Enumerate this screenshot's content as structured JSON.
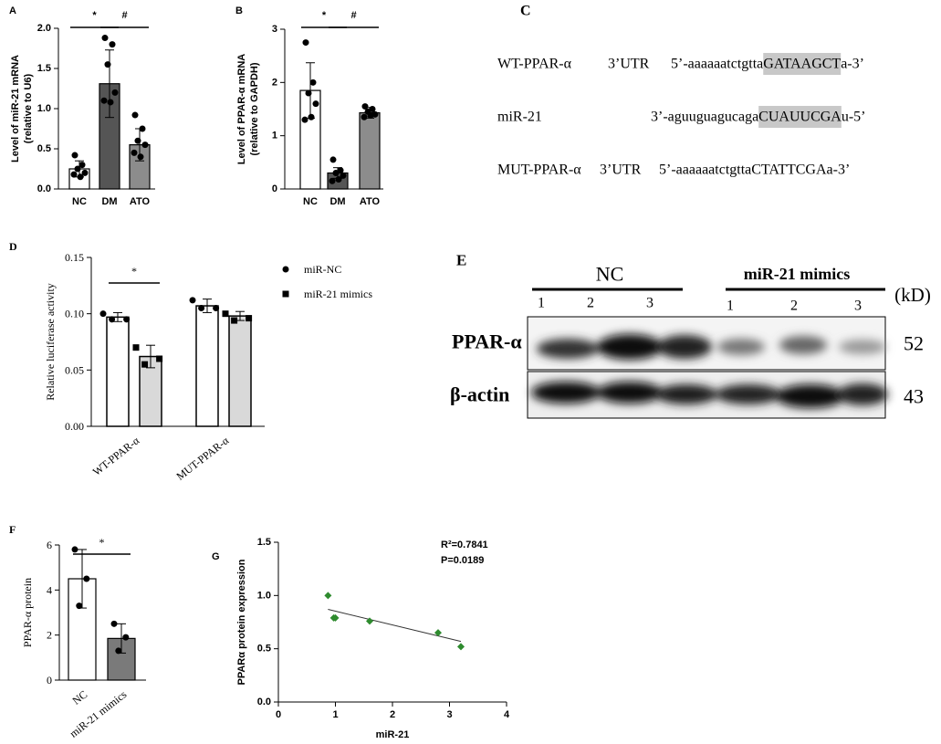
{
  "chart_data": [
    {
      "type": "bar",
      "panel": "A",
      "categories": [
        "NC",
        "DM",
        "ATO"
      ],
      "values": [
        0.25,
        1.31,
        0.55
      ],
      "errors": [
        0.1,
        0.42,
        0.2
      ],
      "colors": [
        "#ffffff",
        "#555555",
        "#8c8c8c"
      ],
      "points": [
        [
          0.42,
          0.3,
          0.25,
          0.2,
          0.18,
          0.15
        ],
        [
          1.88,
          1.8,
          1.55,
          1.2,
          1.1,
          1.08
        ],
        [
          0.92,
          0.75,
          0.6,
          0.55,
          0.45,
          0.4
        ]
      ],
      "ylim": [
        0,
        2
      ],
      "yticks": [
        {
          "value": 0,
          "label": "0.0"
        },
        {
          "value": 0.5,
          "label": "0.5"
        },
        {
          "value": 1,
          "label": "1.0"
        },
        {
          "value": 1.5,
          "label": "1.5"
        },
        {
          "value": 2,
          "label": "2.0"
        }
      ],
      "ylabel": [
        "Level of miR-21 mRNA",
        "(relative to U6)"
      ],
      "brackets": [
        {
          "label": "*",
          "between": [
            "NC",
            "DM"
          ]
        },
        {
          "label": "#",
          "between": [
            "DM",
            "ATO"
          ]
        }
      ]
    },
    {
      "type": "bar",
      "panel": "B",
      "categories": [
        "NC",
        "DM",
        "ATO"
      ],
      "values": [
        1.85,
        0.3,
        1.43
      ],
      "errors": [
        0.52,
        0.1,
        0.1
      ],
      "colors": [
        "#ffffff",
        "#555555",
        "#8c8c8c"
      ],
      "points": [
        [
          2.75,
          2.0,
          1.8,
          1.6,
          1.3,
          1.35
        ],
        [
          0.55,
          0.35,
          0.3,
          0.25,
          0.15,
          0.18
        ],
        [
          1.55,
          1.5,
          1.45,
          1.4,
          1.35,
          1.38
        ]
      ],
      "ylim": [
        0,
        3
      ],
      "yticks": [
        0,
        1,
        2,
        3
      ],
      "ylabel": [
        "Level of PPAR-α mRNA",
        "(relative to GAPDH)"
      ],
      "brackets": [
        {
          "label": "*",
          "between": [
            "NC",
            "DM"
          ]
        },
        {
          "label": "#",
          "between": [
            "DM",
            "ATO"
          ]
        }
      ]
    },
    {
      "type": "grouped_bar",
      "panel": "D",
      "categories": [
        "WT-PPAR-α",
        "MUT-PPAR-α"
      ],
      "series": [
        {
          "name": "miR-NC",
          "color": "#ffffff",
          "marker": "circle",
          "values": [
            0.097,
            0.107
          ],
          "errors": [
            0.004,
            0.006
          ],
          "points": [
            [
              0.1,
              0.095,
              0.095
            ],
            [
              0.112,
              0.105,
              0.105
            ]
          ]
        },
        {
          "name": "miR-21 mimics",
          "color": "#d9d9d9",
          "marker": "square",
          "values": [
            0.062,
            0.098
          ],
          "errors": [
            0.01,
            0.004
          ],
          "points": [
            [
              0.07,
              0.06,
              0.055
            ],
            [
              0.1,
              0.096,
              0.094
            ]
          ]
        }
      ],
      "ylim": [
        0,
        0.15
      ],
      "yticks": [
        {
          "value": 0,
          "label": "0.00"
        },
        {
          "value": 0.05,
          "label": "0.05"
        },
        {
          "value": 0.1,
          "label": "0.10"
        },
        {
          "value": 0.15,
          "label": "0.15"
        }
      ],
      "ylabel": [
        "Relative luciferase  activity"
      ],
      "brackets": [
        {
          "label": "*",
          "between": [
            "miR-NC",
            "miR-21 mimics"
          ]
        }
      ]
    },
    {
      "type": "bar",
      "panel": "F",
      "categories": [
        "NC",
        "miR-21 mimics"
      ],
      "values": [
        4.5,
        1.85
      ],
      "errors": [
        1.3,
        0.65
      ],
      "colors": [
        "#ffffff",
        "#7a7a7a"
      ],
      "points": [
        [
          5.8,
          4.5,
          3.3
        ],
        [
          2.5,
          1.9,
          1.3
        ]
      ],
      "ylim": [
        0,
        6
      ],
      "yticks": [
        0,
        2,
        4,
        6
      ],
      "ylabel": [
        "PPAR-α protein"
      ],
      "brackets": [
        {
          "label": "*",
          "between": [
            "NC",
            "miR-21 mimics"
          ]
        }
      ]
    },
    {
      "type": "scatter",
      "panel": "G",
      "x": [
        0.87,
        0.97,
        1.0,
        1.6,
        2.8,
        3.2
      ],
      "y": [
        1.0,
        0.79,
        0.79,
        0.76,
        0.65,
        0.52
      ],
      "color": "#2e8b2e",
      "trendline": {
        "slope": -0.129,
        "intercept": 0.982
      },
      "xlim": [
        0,
        4
      ],
      "xticks": [
        0,
        1,
        2,
        3,
        4
      ],
      "ylim": [
        0,
        1.5
      ],
      "yticks": [
        {
          "value": 0,
          "label": "0.0"
        },
        {
          "value": 0.5,
          "label": "0.5"
        },
        {
          "value": 1,
          "label": "1.0"
        },
        {
          "value": 1.5,
          "label": "1.5"
        }
      ],
      "xlabel": "miR-21",
      "ylabel": [
        "PPARα protein expression"
      ],
      "annotations": [
        "R²=0.7841",
        "P=0.0189"
      ]
    }
  ],
  "panel_c": {
    "panel": "C",
    "sequences": [
      {
        "name": "WT-PPAR-α",
        "region": "3’UTR",
        "parts": [
          "5’-aaaaaatctgtta",
          "GATAAGCT",
          "a-3’"
        ]
      },
      {
        "name": "miR-21",
        "parts": [
          "3’-aguuguagucaga",
          "CUAUUCGA",
          "u-5’"
        ]
      },
      {
        "name": "MUT-PPAR-α",
        "region": "3’UTR",
        "parts": [
          "5’-aaaaaatctgttaCTATTCGAa-3’"
        ]
      }
    ]
  },
  "panel_e": {
    "panel": "E",
    "groups": [
      "NC",
      "miR-21 mimics"
    ],
    "lanes": [
      "1",
      "2",
      "3",
      "1",
      "2",
      "3"
    ],
    "unit": "(kD)",
    "rows": [
      {
        "label": "PPAR-α",
        "kd": "52"
      },
      {
        "label": "β-actin",
        "kd": "43"
      }
    ]
  }
}
